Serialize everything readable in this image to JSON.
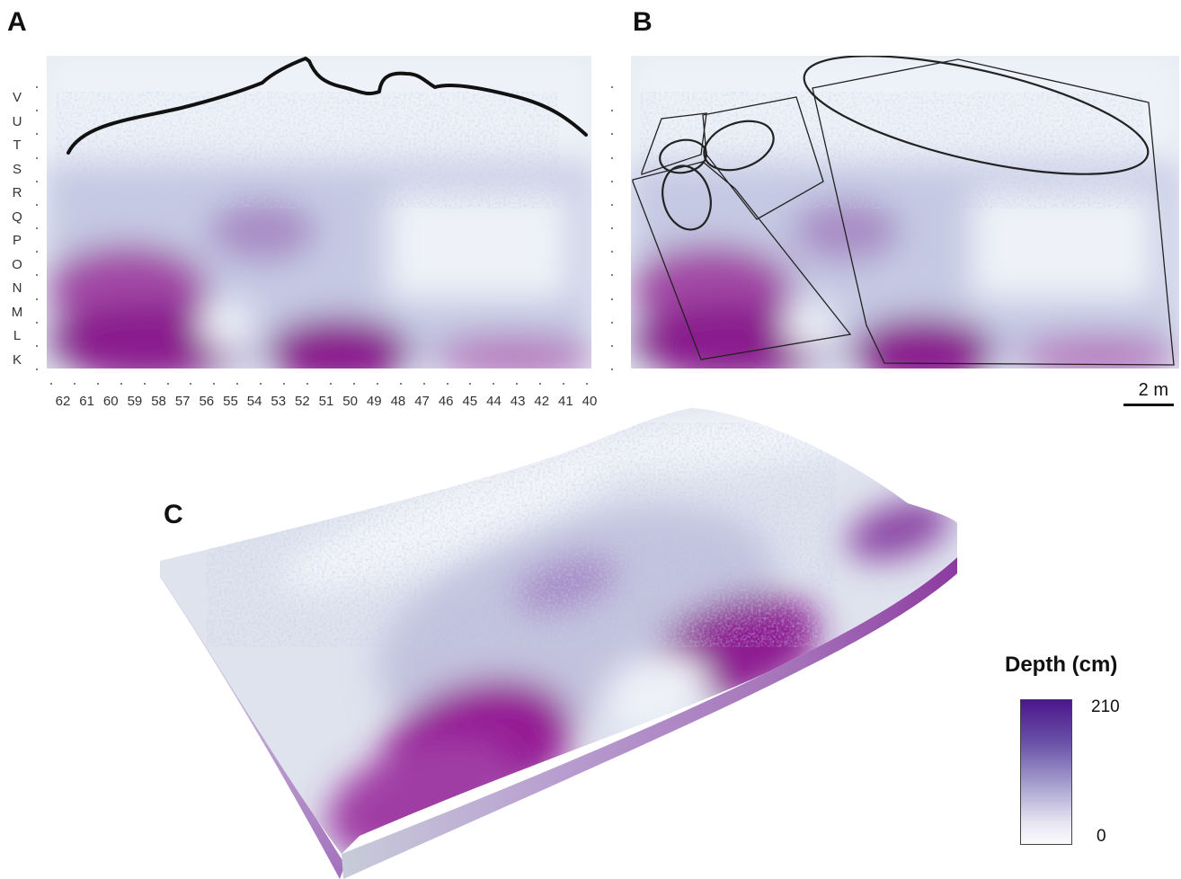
{
  "panels": {
    "a": "A",
    "b": "B",
    "c": "C"
  },
  "grid": {
    "rows": [
      "V",
      "U",
      "T",
      "S",
      "R",
      "Q",
      "P",
      "O",
      "N",
      "M",
      "L",
      "K"
    ],
    "columns": [
      "62",
      "61",
      "60",
      "59",
      "58",
      "57",
      "56",
      "55",
      "54",
      "53",
      "52",
      "51",
      "50",
      "49",
      "48",
      "47",
      "46",
      "45",
      "44",
      "43",
      "42",
      "41",
      "40"
    ]
  },
  "scale_bar": {
    "label": "2 m"
  },
  "legend": {
    "title": "Depth (cm)",
    "max": "210",
    "min": "0",
    "color_high": "#4c168c",
    "color_mid": "#a9a3d0",
    "color_low": "#fbfbfe"
  },
  "colors": {
    "deep": "#8a1a8e",
    "shallow": "#eef1f8",
    "outline": "#111111"
  }
}
